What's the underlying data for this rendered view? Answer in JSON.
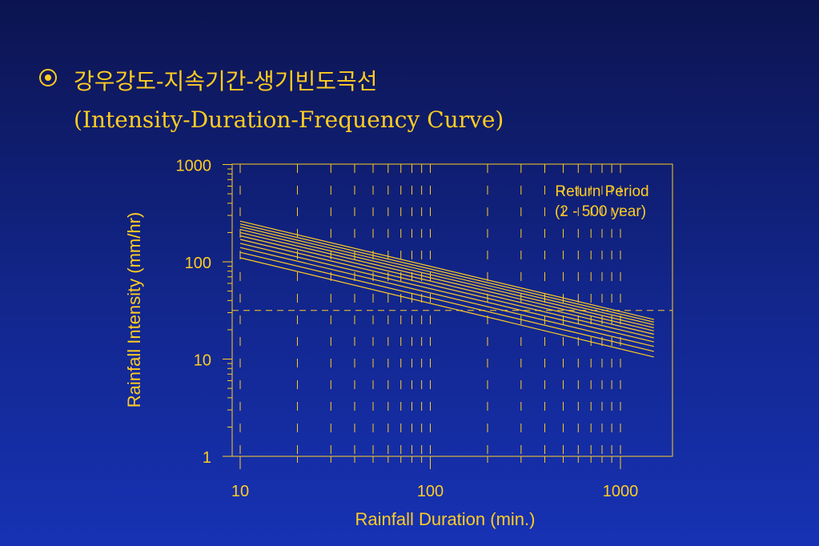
{
  "slide": {
    "title_line1": "강우강도-지속기간-생기빈도곡선",
    "title_line2": "(Intensity-Duration-Frequency Curve)"
  },
  "colors": {
    "accent": "#ffcc22",
    "background_top": "#0c1450",
    "background_bottom": "#1732b4"
  },
  "chart_data": {
    "type": "line",
    "xscale": "log",
    "yscale": "log",
    "xlabel": "Rainfall Duration (min.)",
    "ylabel": "Rainfall Intensity (mm/hr)",
    "xlim": [
      10,
      1500
    ],
    "ylim": [
      1,
      1000
    ],
    "xticks": [
      "10",
      "100",
      "1000"
    ],
    "yticks": [
      "1",
      "10",
      "100",
      "1000"
    ],
    "grid": "dashed vertical at 10-1000 log steps; dashed horizontal at ~32 and 1",
    "annotation_line1": "Return Period",
    "annotation_line2": "(2 - 500 year)",
    "series": [
      {
        "x": [
          10,
          1500
        ],
        "y": [
          110,
          10.5
        ]
      },
      {
        "x": [
          10,
          1500
        ],
        "y": [
          125,
          12
        ]
      },
      {
        "x": [
          10,
          1500
        ],
        "y": [
          140,
          13.5
        ]
      },
      {
        "x": [
          10,
          1500
        ],
        "y": [
          155,
          15
        ]
      },
      {
        "x": [
          10,
          1500
        ],
        "y": [
          170,
          16.5
        ]
      },
      {
        "x": [
          10,
          1500
        ],
        "y": [
          185,
          18
        ]
      },
      {
        "x": [
          10,
          1500
        ],
        "y": [
          200,
          19.5
        ]
      },
      {
        "x": [
          10,
          1500
        ],
        "y": [
          215,
          21
        ]
      },
      {
        "x": [
          10,
          1500
        ],
        "y": [
          230,
          22.5
        ]
      },
      {
        "x": [
          10,
          1500
        ],
        "y": [
          245,
          24
        ]
      },
      {
        "x": [
          10,
          1500
        ],
        "y": [
          262,
          25.5
        ]
      }
    ]
  }
}
